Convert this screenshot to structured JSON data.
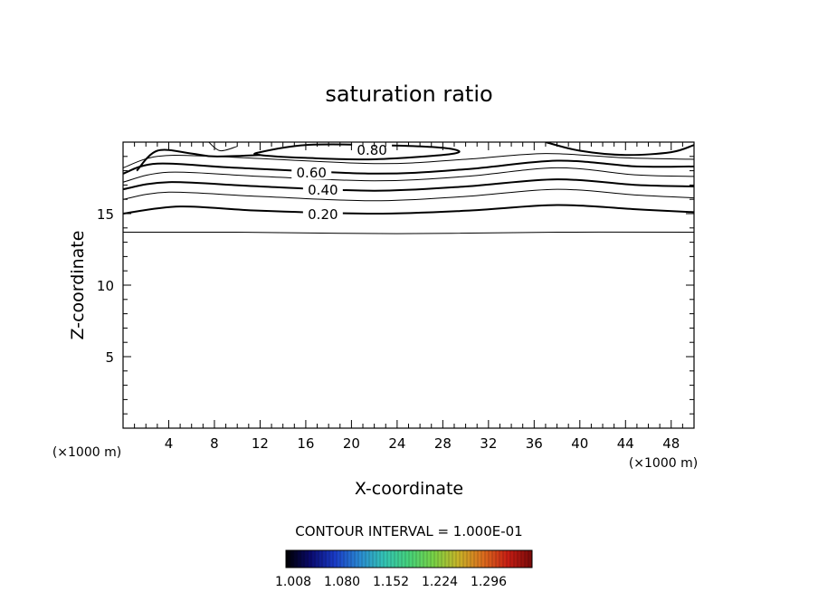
{
  "chart_data": {
    "type": "contour",
    "title": "saturation ratio",
    "xlabel": "X-coordinate",
    "ylabel": "Z-coordinate",
    "x_unit_left": "(×1000 m)",
    "x_unit_right": "(×1000 m)",
    "xlim": [
      0,
      50
    ],
    "ylim": [
      0,
      20
    ],
    "x_ticks": [
      4,
      8,
      12,
      16,
      20,
      24,
      28,
      32,
      36,
      40,
      44,
      48
    ],
    "y_ticks": [
      5,
      10,
      15
    ],
    "contour_interval_text": "CONTOUR INTERVAL = 1.000E-01",
    "contour_labels": [
      {
        "text": "0.20",
        "x": 17.5,
        "y": 15.0
      },
      {
        "text": "0.40",
        "x": 17.5,
        "y": 16.7
      },
      {
        "text": "0.60",
        "x": 16.5,
        "y": 17.9
      },
      {
        "text": "0.80",
        "x": 21.8,
        "y": 19.5
      }
    ],
    "contour_lines": [
      {
        "level": "0.10",
        "major": false,
        "points": [
          [
            0,
            13.7
          ],
          [
            10,
            13.7
          ],
          [
            24,
            13.6
          ],
          [
            38,
            13.7
          ],
          [
            50,
            13.7
          ]
        ]
      },
      {
        "level": "0.20",
        "major": true,
        "points": [
          [
            0,
            15.0
          ],
          [
            5,
            15.5
          ],
          [
            12,
            15.2
          ],
          [
            22,
            15.0
          ],
          [
            30,
            15.2
          ],
          [
            38,
            15.6
          ],
          [
            45,
            15.3
          ],
          [
            50,
            15.1
          ]
        ]
      },
      {
        "level": "0.30",
        "major": false,
        "points": [
          [
            0,
            16.0
          ],
          [
            4,
            16.5
          ],
          [
            12,
            16.2
          ],
          [
            22,
            15.9
          ],
          [
            30,
            16.2
          ],
          [
            38,
            16.7
          ],
          [
            45,
            16.3
          ],
          [
            50,
            16.1
          ]
        ]
      },
      {
        "level": "0.40",
        "major": true,
        "points": [
          [
            0,
            16.7
          ],
          [
            4,
            17.2
          ],
          [
            12,
            16.9
          ],
          [
            22,
            16.6
          ],
          [
            30,
            16.9
          ],
          [
            38,
            17.4
          ],
          [
            45,
            17.0
          ],
          [
            50,
            16.9
          ]
        ]
      },
      {
        "level": "0.50",
        "major": false,
        "points": [
          [
            0,
            17.2
          ],
          [
            4,
            17.9
          ],
          [
            12,
            17.6
          ],
          [
            22,
            17.3
          ],
          [
            30,
            17.6
          ],
          [
            38,
            18.2
          ],
          [
            45,
            17.7
          ],
          [
            50,
            17.6
          ]
        ]
      },
      {
        "level": "0.60",
        "major": true,
        "points": [
          [
            0,
            17.8
          ],
          [
            3,
            18.5
          ],
          [
            10,
            18.2
          ],
          [
            22,
            17.8
          ],
          [
            30,
            18.1
          ],
          [
            38,
            18.7
          ],
          [
            45,
            18.3
          ],
          [
            50,
            18.3
          ]
        ]
      },
      {
        "level": "0.70",
        "major": false,
        "points": [
          [
            0,
            18.2
          ],
          [
            3,
            19.0
          ],
          [
            8,
            19.0
          ],
          [
            22,
            18.5
          ],
          [
            30,
            18.8
          ],
          [
            37,
            19.2
          ],
          [
            44,
            18.9
          ],
          [
            50,
            18.8
          ]
        ]
      },
      {
        "level": "0.80",
        "major": true,
        "points": [
          [
            1.2,
            18.0
          ],
          [
            3,
            19.4
          ],
          [
            6,
            19.2
          ],
          [
            8,
            19.0
          ],
          [
            12,
            19.1
          ]
        ]
      },
      {
        "level": "0.80",
        "major": true,
        "closed": true,
        "points": [
          [
            12,
            19.3
          ],
          [
            16,
            19.8
          ],
          [
            22,
            19.8
          ],
          [
            28,
            19.6
          ],
          [
            29,
            19.2
          ],
          [
            22,
            18.8
          ],
          [
            16,
            18.9
          ],
          [
            12,
            19.1
          ]
        ]
      },
      {
        "level": "0.80",
        "major": true,
        "points": [
          [
            37,
            20.0
          ],
          [
            40,
            19.4
          ],
          [
            44,
            19.1
          ],
          [
            48,
            19.3
          ],
          [
            50,
            19.8
          ]
        ]
      },
      {
        "level": "0.90",
        "major": false,
        "points": [
          [
            7.5,
            20.0
          ],
          [
            8.5,
            19.4
          ],
          [
            10,
            19.7
          ]
        ]
      }
    ],
    "colorbar": {
      "ticks": [
        "1.008",
        "1.080",
        "1.152",
        "1.224",
        "1.296"
      ],
      "colors": [
        "#000000",
        "#0a0a6e",
        "#1a3cc8",
        "#2a8ad2",
        "#34c4b4",
        "#46d27a",
        "#78d246",
        "#c8b428",
        "#dc6e1e",
        "#c81e14",
        "#780a0a"
      ]
    }
  }
}
